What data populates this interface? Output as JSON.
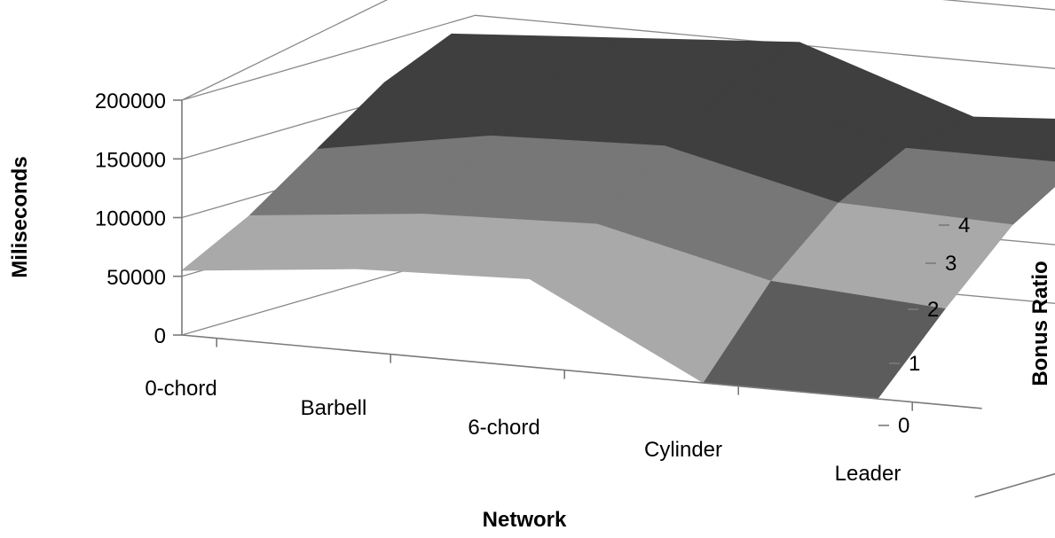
{
  "chart_data": {
    "type": "surface",
    "xlabel": "Network",
    "ylabel": "Miliseconds",
    "zlabel": "Bonus Ratio",
    "x_categories": [
      "0-chord",
      "Barbell",
      "6-chord",
      "Cylinder",
      "Leader"
    ],
    "depth_ticks": [
      "0",
      "1",
      "2",
      "3",
      "4"
    ],
    "yticks": [
      "0",
      "50000",
      "100000",
      "150000",
      "200000"
    ],
    "ylim": [
      0,
      200000
    ],
    "shade_bands": [
      {
        "from": 0,
        "to": 50000,
        "color": "#5c5c5c"
      },
      {
        "from": 50000,
        "to": 100000,
        "color": "#a9a9a9"
      },
      {
        "from": 100000,
        "to": 150000,
        "color": "#777777"
      },
      {
        "from": 150000,
        "to": 200000,
        "color": "#3f3f3f"
      }
    ],
    "values": [
      [
        55000,
        85000,
        125000,
        165000,
        190000
      ],
      [
        70000,
        100000,
        150000,
        185000,
        200000
      ],
      [
        75000,
        105000,
        155000,
        190000,
        210000
      ],
      [
        0,
        70000,
        120000,
        150000,
        160000
      ],
      [
        0,
        60000,
        115000,
        150000,
        170000
      ]
    ],
    "grid": true
  }
}
